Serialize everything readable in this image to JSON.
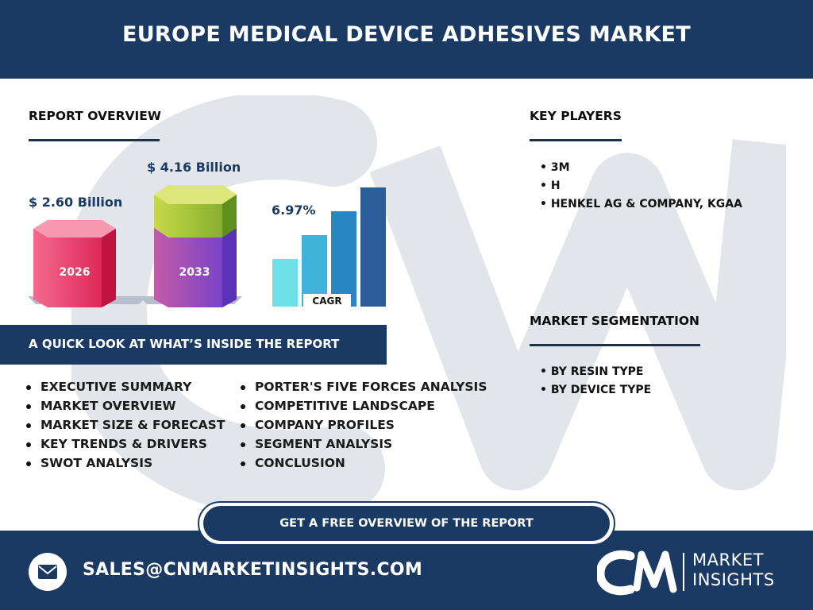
{
  "header": {
    "title": "EUROPE MEDICAL DEVICE ADHESIVES MARKET"
  },
  "report_overview": {
    "title": "REPORT OVERVIEW",
    "value_2026": "$ 2.60 Billion",
    "value_2033": "$ 4.16 Billion",
    "year_2026": "2026",
    "year_2033": "2033",
    "cagr_value": "6.97%",
    "cagr_label": "CAGR"
  },
  "key_players": {
    "title": "KEY PLAYERS",
    "items": [
      "3M",
      "H",
      "HENKEL AG & COMPANY, KGAA"
    ]
  },
  "market_segmentation": {
    "title": "MARKET SEGMENTATION",
    "items": [
      "BY RESIN TYPE",
      "BY DEVICE TYPE"
    ]
  },
  "quick_look": {
    "title": "A QUICK LOOK AT WHAT’S INSIDE THE REPORT",
    "col1": [
      "EXECUTIVE SUMMARY",
      "MARKET OVERVIEW",
      "MARKET SIZE & FORECAST",
      "KEY TRENDS & DRIVERS",
      "SWOT ANALYSIS"
    ],
    "col2": [
      "PORTER'S FIVE FORCES ANALYSIS",
      "COMPETITIVE LANDSCAPE",
      "COMPANY PROFILES",
      "SEGMENT ANALYSIS",
      "CONCLUSION"
    ]
  },
  "cta": {
    "label": "GET A FREE OVERVIEW OF THE REPORT"
  },
  "footer": {
    "email": "SALES@CNMARKETINSIGHTS.COM",
    "logo_line1": "MARKET",
    "logo_line2": "INSIGHTS"
  },
  "colors": {
    "navy": "#1b3a63",
    "pink": "#e8245a",
    "purple": "#7c3fc4",
    "lime": "#a5c83a",
    "cagr_bars": [
      "#6ee0e8",
      "#3fb4d8",
      "#2a86c0",
      "#2a5d9a"
    ]
  },
  "icons": {
    "mail": "mail-icon",
    "logo": "cn-logo"
  }
}
